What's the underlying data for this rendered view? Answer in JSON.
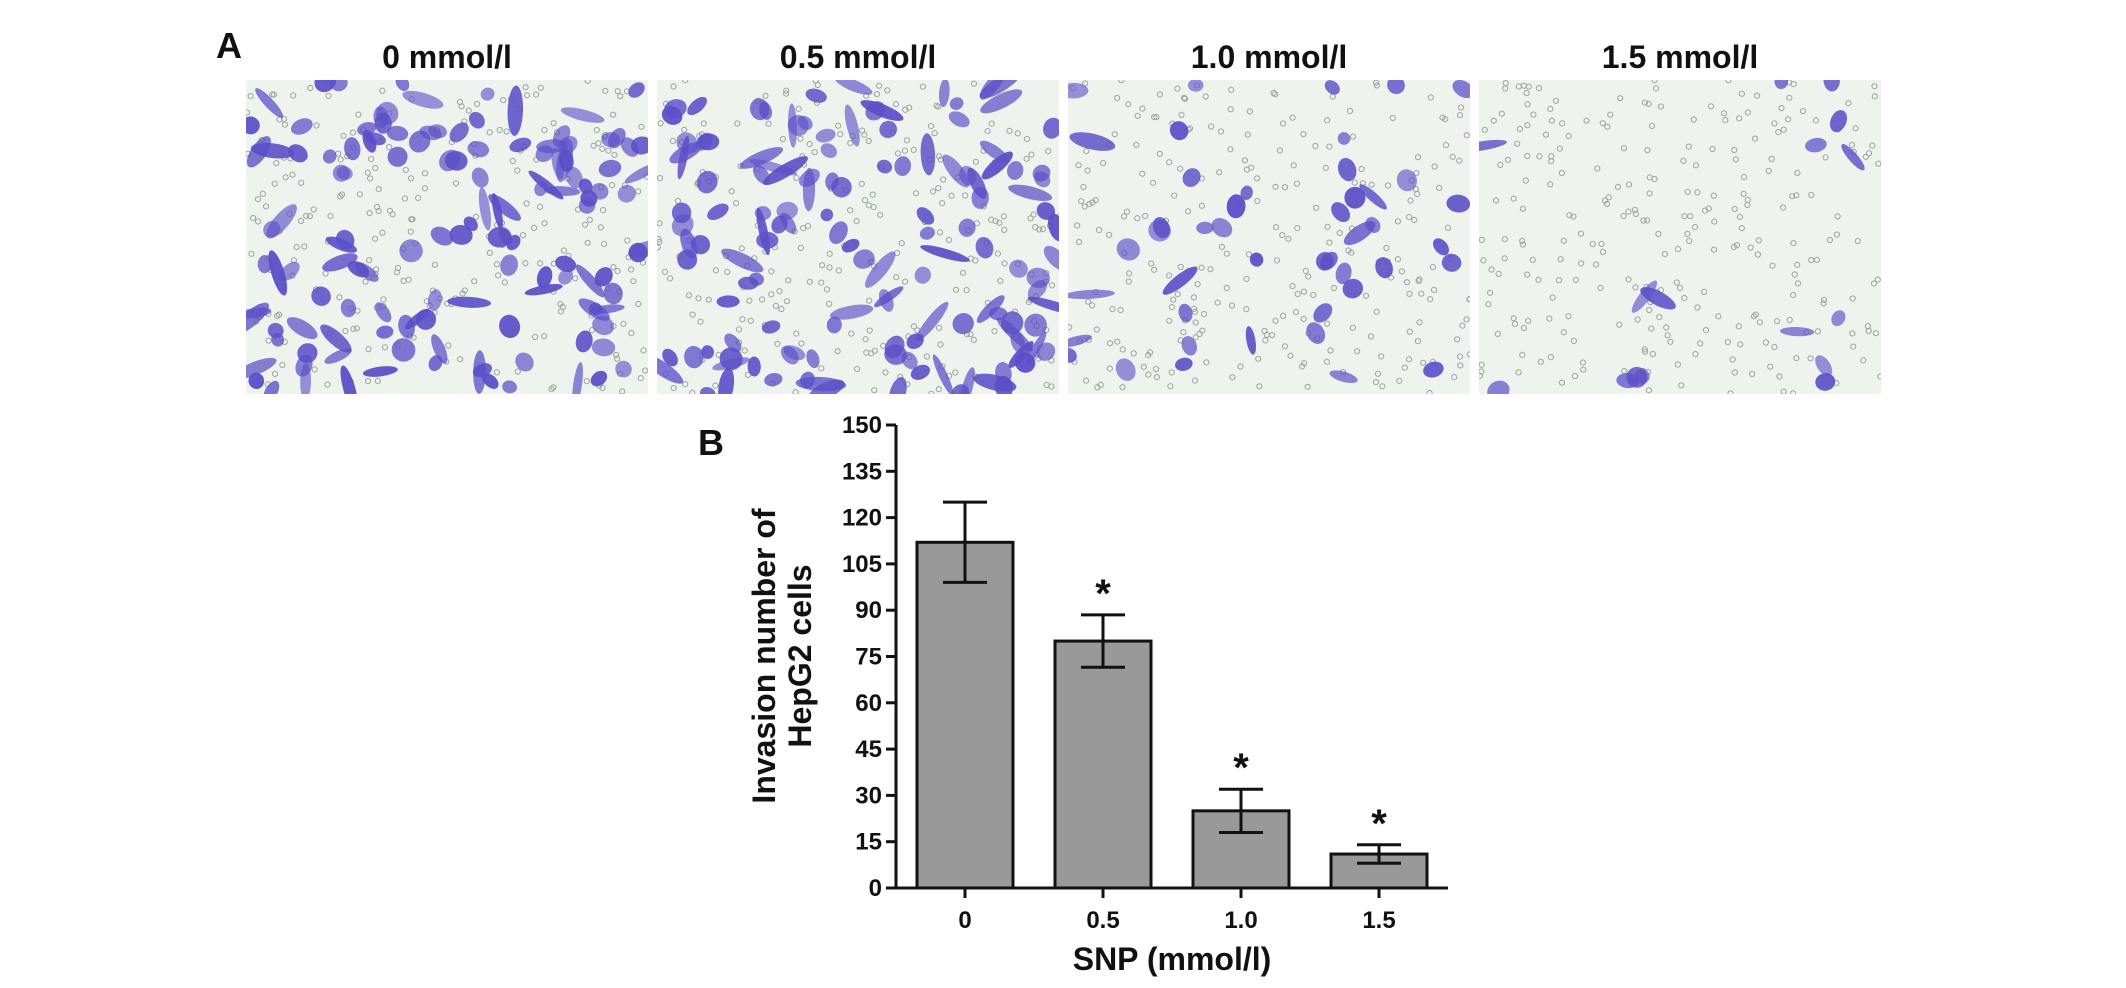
{
  "panels": {
    "a_label": "A",
    "b_label": "B"
  },
  "micrographs": [
    {
      "title": "0 mmol/l",
      "cell_density": "high",
      "color": "#5a4fc8"
    },
    {
      "title": "0.5 mmol/l",
      "cell_density": "high",
      "color": "#5a4fc8"
    },
    {
      "title": "1.0 mmol/l",
      "cell_density": "medium",
      "color": "#5a4fc8"
    },
    {
      "title": "1.5 mmol/l",
      "cell_density": "low",
      "color": "#5a4fc8"
    }
  ],
  "chart_data": {
    "type": "bar",
    "categories": [
      "0",
      "0.5",
      "1.0",
      "1.5"
    ],
    "values": [
      112,
      80,
      25,
      11
    ],
    "errors": [
      13,
      8.5,
      7,
      3
    ],
    "significance": [
      "",
      "*",
      "*",
      "*"
    ],
    "xlabel": "SNP (mmol/l)",
    "ylabel": "Invasion number of HepG2 cells",
    "ylim": [
      0,
      150
    ],
    "yticks": [
      0,
      15,
      30,
      45,
      60,
      75,
      90,
      105,
      120,
      135,
      150
    ],
    "bar_color": "#999999",
    "grid": false,
    "legend": "none"
  }
}
